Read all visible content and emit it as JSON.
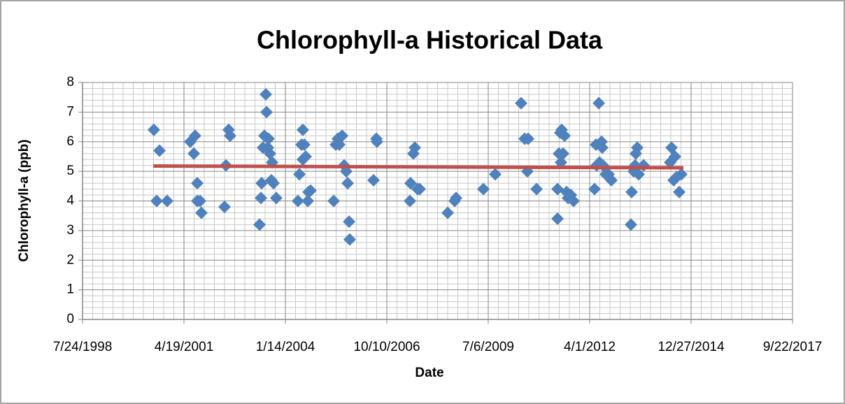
{
  "chart_data": {
    "type": "scatter",
    "title": "Chlorophyll-a Historical Data",
    "x_label": "Date",
    "y_label": "Chlorophyll-a (ppb)",
    "color": "#4f81bd",
    "grid": true,
    "minor_grid": true,
    "x": [
      36703,
      36759,
      36731,
      36834,
      37062,
      37110,
      37097,
      37131,
      37131,
      37159,
      37172,
      37400,
      37414,
      37441,
      37455,
      37745,
      37759,
      37766,
      37779,
      37793,
      37807,
      37814,
      37834,
      37828,
      37848,
      37862,
      37869,
      37883,
      37910,
      38124,
      38138,
      38159,
      38172,
      38172,
      38186,
      38200,
      38221,
      38228,
      38248,
      38476,
      38497,
      38517,
      38531,
      38559,
      38579,
      38600,
      38614,
      38628,
      38634,
      38869,
      38897,
      38903,
      39228,
      39234,
      39262,
      39276,
      39303,
      39324,
      39600,
      39669,
      39683,
      39952,
      40069,
      40324,
      40359,
      40393,
      40386,
      40476,
      40683,
      40683,
      40697,
      40710,
      40724,
      40717,
      40738,
      40752,
      40772,
      40786,
      40814,
      40841,
      41048,
      41062,
      41069,
      41090,
      41097,
      41117,
      41124,
      41131,
      41159,
      41186,
      41214,
      41407,
      41414,
      41434,
      41448,
      41455,
      41469,
      41483,
      41531,
      41793,
      41807,
      41828,
      41841,
      41855,
      41883,
      41903
    ],
    "values": [
      6.4,
      5.7,
      4.0,
      4.0,
      6.0,
      6.2,
      5.6,
      4.6,
      4.0,
      4.0,
      3.6,
      3.8,
      5.2,
      6.4,
      6.2,
      3.2,
      4.1,
      4.6,
      5.8,
      6.2,
      7.6,
      7.0,
      6.1,
      5.8,
      5.6,
      4.7,
      5.3,
      4.6,
      4.1,
      4.0,
      4.9,
      5.9,
      6.4,
      5.4,
      5.9,
      5.5,
      4.0,
      4.3,
      4.35,
      4.0,
      5.9,
      6.1,
      5.9,
      6.2,
      5.2,
      5.0,
      4.6,
      3.3,
      2.7,
      4.7,
      6.1,
      6.0,
      4.0,
      4.6,
      5.6,
      5.8,
      4.4,
      4.4,
      3.6,
      4.0,
      4.1,
      4.4,
      4.9,
      7.3,
      6.1,
      6.1,
      5.0,
      4.4,
      3.4,
      4.4,
      5.6,
      6.3,
      6.4,
      5.3,
      5.6,
      6.2,
      4.3,
      4.1,
      4.2,
      4.0,
      4.4,
      5.9,
      5.2,
      7.3,
      5.3,
      6.0,
      5.8,
      5.2,
      4.9,
      4.9,
      4.7,
      3.2,
      4.3,
      5.0,
      5.2,
      5.6,
      5.8,
      4.9,
      5.2,
      5.3,
      5.8,
      4.7,
      5.5,
      4.8,
      4.3,
      4.9
    ],
    "trendline": {
      "color": "#c0504d",
      "x": [
        36697,
        41924
      ],
      "values": [
        5.18,
        5.12
      ]
    },
    "xlim": [
      36000,
      43000
    ],
    "xticks": [
      {
        "value": 36000,
        "label": "7/24/1998"
      },
      {
        "value": 37000,
        "label": "4/19/2001"
      },
      {
        "value": 38000,
        "label": "1/14/2004"
      },
      {
        "value": 39000,
        "label": "10/10/2006"
      },
      {
        "value": 40000,
        "label": "7/6/2009"
      },
      {
        "value": 41000,
        "label": "4/1/2012"
      },
      {
        "value": 42000,
        "label": "12/27/2014"
      },
      {
        "value": 43000,
        "label": "9/22/2017"
      }
    ],
    "ylim": [
      0,
      8
    ],
    "yticks": [
      0,
      1,
      2,
      3,
      4,
      5,
      6,
      7,
      8
    ]
  }
}
